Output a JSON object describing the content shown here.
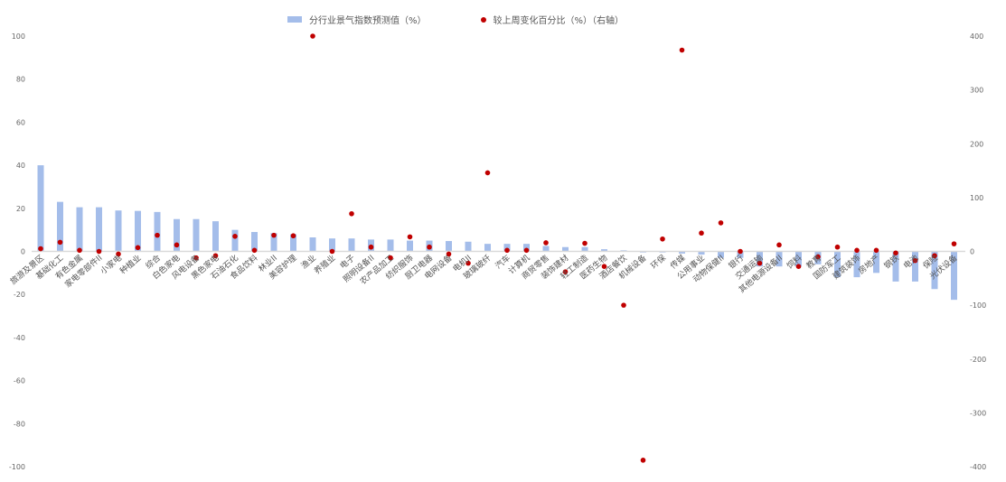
{
  "chart_data": {
    "type": "bar+scatter",
    "legend": {
      "placement": "top",
      "items": [
        "分行业景气指数预测值（%）",
        "较上周变化百分比（%）（右轴）"
      ]
    },
    "colors": {
      "bar": "#a4bdea",
      "dot": "#c00000",
      "zero_line": "#d9d9d9"
    },
    "grid": false,
    "ylim_left": [
      -100,
      100
    ],
    "ylim_right": [
      -400,
      400
    ],
    "left_ticks": [
      "100",
      "80",
      "60",
      "40",
      "20",
      "0",
      "-20",
      "-40",
      "-60",
      "-80",
      "-100"
    ],
    "right_ticks": [
      "400",
      "300",
      "200",
      "100",
      "0",
      "-100",
      "-200",
      "-300",
      "-400"
    ],
    "categories": [
      "旅游及景区",
      "基础化工",
      "有色金属",
      "家电零部件II",
      "小家电",
      "种植业",
      "综合",
      "白色家电",
      "风电设备",
      "黑色家电",
      "石油石化",
      "食品饮料",
      "林业II",
      "美容护理",
      "渔业",
      "养殖业",
      "电子",
      "照明设备II",
      "农产品加工",
      "纺织服饰",
      "厨卫电器",
      "电网设备",
      "电机II",
      "玻璃玻纤",
      "汽车",
      "计算机",
      "商贸零售",
      "装饰建材",
      "轻工制造",
      "医药生物",
      "酒店餐饮",
      "机械设备",
      "环保",
      "传媒",
      "公用事业",
      "动物保健II",
      "银行",
      "交通运输",
      "其他电源设备II",
      "饲料",
      "教育",
      "国防军工",
      "建筑装饰",
      "房地产",
      "钢铁",
      "电池",
      "保险",
      "光伏设备"
    ],
    "series": [
      {
        "name": "分行业景气指数预测值（%）",
        "axis": "left",
        "type": "bar",
        "values": [
          40,
          23,
          20.5,
          20.5,
          19,
          18.8,
          18.3,
          15,
          15,
          14,
          10,
          9,
          8.5,
          8,
          6.5,
          6,
          6,
          5.5,
          5.5,
          5,
          5,
          4.8,
          4.5,
          3.5,
          3.5,
          3.5,
          2.5,
          2,
          2,
          1,
          0.5,
          -0.5,
          -0.5,
          -1,
          -1.5,
          -3,
          -3,
          -7,
          -7,
          -7,
          -6,
          -12,
          -12,
          -10,
          -14,
          -14,
          -17.5,
          -22.5
        ]
      },
      {
        "name": "较上周变化百分比（%）（右轴）",
        "axis": "right",
        "type": "scatter",
        "values": [
          5,
          17,
          2,
          0,
          -5,
          7,
          30,
          12,
          -12,
          -8,
          28,
          2,
          30,
          29,
          400,
          0,
          70,
          8,
          -12,
          27,
          8,
          -5,
          -22,
          146,
          2,
          2,
          16,
          -38,
          15,
          -28,
          -100,
          -388,
          23,
          374,
          34,
          53,
          0,
          -22,
          12,
          -28,
          -10,
          8,
          2,
          2,
          -3,
          -17,
          -8,
          14
        ]
      }
    ]
  }
}
